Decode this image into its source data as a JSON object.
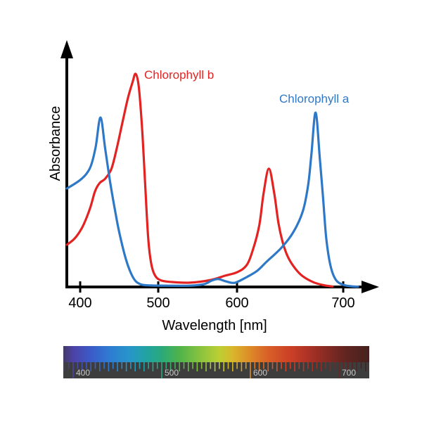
{
  "figure": {
    "curve_a_label": "Chlorophyll a",
    "curve_b_label": "Chlorophyll b",
    "colors": {
      "chlorophyll_a": "#2e78c8",
      "chlorophyll_b": "#e32322",
      "axis": "#000000",
      "ruler_band": "#3d3d3d",
      "ruler_label": "#c9c9c9"
    }
  },
  "chart_data": {
    "type": "line",
    "xlabel": "Wavelength [nm]",
    "ylabel": "Absorbance",
    "x_ticks": [
      400,
      500,
      600,
      700
    ],
    "x_range_nm": [
      383,
      714
    ],
    "y_range": [
      0,
      1.05
    ],
    "grid": false,
    "legend_position": "inline-labels",
    "series": [
      {
        "name": "Chlorophyll b",
        "color": "#e32322",
        "points": [
          [
            383,
            0.198
          ],
          [
            392,
            0.224
          ],
          [
            399,
            0.257
          ],
          [
            405,
            0.297
          ],
          [
            413,
            0.373
          ],
          [
            419,
            0.449
          ],
          [
            425,
            0.488
          ],
          [
            432,
            0.508
          ],
          [
            440,
            0.554
          ],
          [
            447,
            0.653
          ],
          [
            454,
            0.769
          ],
          [
            461,
            0.884
          ],
          [
            467,
            0.96
          ],
          [
            471,
            1.0
          ],
          [
            475,
            0.94
          ],
          [
            479,
            0.76
          ],
          [
            483,
            0.5
          ],
          [
            487,
            0.235
          ],
          [
            491,
            0.11
          ],
          [
            496,
            0.053
          ],
          [
            504,
            0.03
          ],
          [
            518,
            0.023
          ],
          [
            540,
            0.02
          ],
          [
            567,
            0.033
          ],
          [
            585,
            0.053
          ],
          [
            600,
            0.069
          ],
          [
            609,
            0.102
          ],
          [
            615,
            0.175
          ],
          [
            621,
            0.29
          ],
          [
            625,
            0.44
          ],
          [
            630,
            0.555
          ],
          [
            635,
            0.44
          ],
          [
            639,
            0.3
          ],
          [
            643,
            0.21
          ],
          [
            648,
            0.14
          ],
          [
            655,
            0.085
          ],
          [
            662,
            0.05
          ],
          [
            672,
            0.022
          ],
          [
            682,
            0.008
          ],
          [
            690,
            0.002
          ]
        ]
      },
      {
        "name": "Chlorophyll a",
        "color": "#2e78c8",
        "points": [
          [
            383,
            0.462
          ],
          [
            392,
            0.482
          ],
          [
            401,
            0.505
          ],
          [
            408,
            0.531
          ],
          [
            414,
            0.571
          ],
          [
            420,
            0.66
          ],
          [
            426,
            0.795
          ],
          [
            432,
            0.65
          ],
          [
            438,
            0.5
          ],
          [
            444,
            0.373
          ],
          [
            450,
            0.257
          ],
          [
            459,
            0.125
          ],
          [
            468,
            0.043
          ],
          [
            477,
            0.013
          ],
          [
            491,
            0.007
          ],
          [
            513,
            0.006
          ],
          [
            540,
            0.006
          ],
          [
            558,
            0.013
          ],
          [
            568,
            0.03
          ],
          [
            576,
            0.037
          ],
          [
            586,
            0.026
          ],
          [
            594,
            0.019
          ],
          [
            600,
            0.023
          ],
          [
            609,
            0.046
          ],
          [
            619,
            0.076
          ],
          [
            628,
            0.119
          ],
          [
            642,
            0.185
          ],
          [
            653,
            0.257
          ],
          [
            662,
            0.356
          ],
          [
            667,
            0.48
          ],
          [
            670,
            0.62
          ],
          [
            674,
            0.818
          ],
          [
            678,
            0.6
          ],
          [
            681,
            0.42
          ],
          [
            684,
            0.23
          ],
          [
            688,
            0.1
          ],
          [
            693,
            0.034
          ],
          [
            700,
            0.01
          ],
          [
            708,
            0.003
          ],
          [
            714,
            0.001
          ]
        ]
      }
    ]
  },
  "spectrum_bar": {
    "tick_labels": [
      400,
      500,
      600,
      700
    ],
    "nm_start": 389,
    "nm_end": 734,
    "tick_nm_start": 390,
    "tick_nm_end": 730,
    "tick_step_nm": 5,
    "gradient_stops": [
      {
        "nm": 389,
        "color": "#433a66"
      },
      {
        "nm": 400,
        "color": "#4c42a6"
      },
      {
        "nm": 420,
        "color": "#3b5bc8"
      },
      {
        "nm": 440,
        "color": "#2f7ad2"
      },
      {
        "nm": 465,
        "color": "#2697c8"
      },
      {
        "nm": 485,
        "color": "#22a49c"
      },
      {
        "nm": 500,
        "color": "#2aa97b"
      },
      {
        "nm": 520,
        "color": "#4fb34a"
      },
      {
        "nm": 545,
        "color": "#8cc43e"
      },
      {
        "nm": 565,
        "color": "#bccf33"
      },
      {
        "nm": 580,
        "color": "#d9b62c"
      },
      {
        "nm": 600,
        "color": "#dd8a28"
      },
      {
        "nm": 620,
        "color": "#d85f28"
      },
      {
        "nm": 645,
        "color": "#cb4026"
      },
      {
        "nm": 665,
        "color": "#ad3226"
      },
      {
        "nm": 685,
        "color": "#872b23"
      },
      {
        "nm": 705,
        "color": "#652521"
      },
      {
        "nm": 734,
        "color": "#44211e"
      }
    ]
  }
}
